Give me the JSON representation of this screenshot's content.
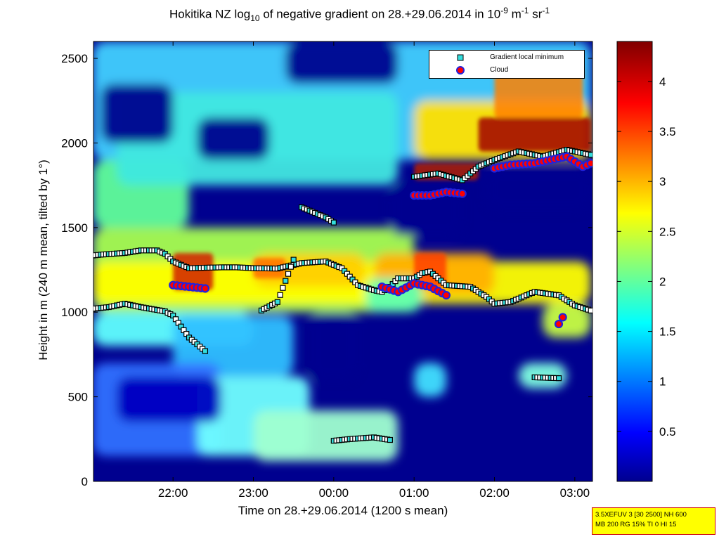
{
  "chart_data": {
    "type": "heatmap",
    "title_parts": {
      "pre": "Hokitika NZ log",
      "sub": "10",
      "mid": " of negative gradient on 28.+29.06.2014 in 10",
      "sup1": "-9",
      "mid2": " m",
      "sup2": "-1",
      "mid3": " sr",
      "sup3": "-1"
    },
    "xlabel": "Time on 28.+29.06.2014 (1200 s mean)",
    "ylabel": "Height in m (240 m mean, tilted by 1°)",
    "x_unit": "hours since 28.06.2014 00:00",
    "xlim": [
      21.01,
      27.22
    ],
    "ylim": [
      0,
      2600
    ],
    "x_ticks": [
      {
        "value": 22.0,
        "label": "22:00"
      },
      {
        "value": 23.0,
        "label": "23:00"
      },
      {
        "value": 24.0,
        "label": "00:00"
      },
      {
        "value": 25.0,
        "label": "01:00"
      },
      {
        "value": 26.0,
        "label": "02:00"
      },
      {
        "value": 27.0,
        "label": "03:00"
      }
    ],
    "y_ticks": [
      0,
      500,
      1000,
      1500,
      2000,
      2500
    ],
    "colorbar": {
      "range": [
        0,
        4.4
      ],
      "ticks": [
        0.5,
        1,
        1.5,
        2,
        2.5,
        3,
        3.5,
        4
      ],
      "colormap": "jet"
    },
    "legend": {
      "placement": "top-right",
      "entries": [
        {
          "label": "Gradient local minimum",
          "marker": "square",
          "color": "#33dddd"
        },
        {
          "label": "Cloud",
          "marker": "circle",
          "color": "#ff0000"
        }
      ]
    },
    "series": [
      {
        "name": "Gradient local minimum",
        "tracks": [
          [
            [
              21.0,
              1335
            ],
            [
              21.1,
              1340
            ],
            [
              21.4,
              1350
            ],
            [
              21.6,
              1365
            ],
            [
              21.8,
              1365
            ],
            [
              21.9,
              1345
            ],
            [
              22.0,
              1300
            ],
            [
              22.2,
              1260
            ],
            [
              22.6,
              1265
            ],
            [
              22.8,
              1265
            ],
            [
              23.0,
              1260
            ],
            [
              23.3,
              1258
            ],
            [
              23.6,
              1290
            ],
            [
              23.9,
              1300
            ],
            [
              24.1,
              1260
            ],
            [
              24.3,
              1160
            ],
            [
              24.5,
              1130
            ],
            [
              24.6,
              1120
            ],
            [
              24.7,
              1150
            ],
            [
              24.8,
              1200
            ],
            [
              25.0,
              1200
            ],
            [
              25.1,
              1230
            ],
            [
              25.2,
              1240
            ],
            [
              25.4,
              1160
            ],
            [
              25.7,
              1150
            ],
            [
              25.9,
              1090
            ],
            [
              26.0,
              1050
            ],
            [
              26.2,
              1060
            ],
            [
              26.5,
              1120
            ],
            [
              26.8,
              1100
            ],
            [
              27.0,
              1040
            ],
            [
              27.2,
              1010
            ]
          ],
          [
            [
              21.0,
              1020
            ],
            [
              21.2,
              1030
            ],
            [
              21.4,
              1050
            ],
            [
              21.6,
              1030
            ],
            [
              21.9,
              1005
            ],
            [
              22.0,
              980
            ],
            [
              22.2,
              850
            ],
            [
              22.4,
              770
            ]
          ],
          [
            [
              23.1,
              1010
            ],
            [
              23.3,
              1060
            ],
            [
              23.5,
              1310
            ]
          ],
          [
            [
              24.0,
              240
            ],
            [
              24.2,
              250
            ],
            [
              24.5,
              260
            ],
            [
              24.7,
              245
            ]
          ],
          [
            [
              25.0,
              1800
            ],
            [
              25.3,
              1820
            ],
            [
              25.6,
              1780
            ],
            [
              25.8,
              1860
            ],
            [
              26.0,
              1900
            ],
            [
              26.3,
              1950
            ],
            [
              26.6,
              1920
            ],
            [
              26.9,
              1960
            ],
            [
              27.2,
              1930
            ]
          ],
          [
            [
              23.6,
              1620
            ],
            [
              23.9,
              1560
            ],
            [
              24.0,
              1530
            ]
          ],
          [
            [
              26.5,
              615
            ],
            [
              26.8,
              610
            ]
          ]
        ]
      },
      {
        "name": "Cloud",
        "tracks": [
          [
            [
              22.0,
              1160
            ],
            [
              22.2,
              1150
            ],
            [
              22.4,
              1140
            ]
          ],
          [
            [
              24.6,
              1150
            ],
            [
              24.8,
              1120
            ],
            [
              25.0,
              1170
            ],
            [
              25.2,
              1150
            ],
            [
              25.4,
              1100
            ]
          ],
          [
            [
              25.0,
              1690
            ],
            [
              25.2,
              1690
            ],
            [
              25.4,
              1710
            ],
            [
              25.6,
              1700
            ]
          ],
          [
            [
              26.0,
              1850
            ],
            [
              26.2,
              1870
            ],
            [
              26.5,
              1880
            ],
            [
              26.7,
              1900
            ],
            [
              26.9,
              1920
            ],
            [
              27.1,
              1860
            ],
            [
              27.2,
              1880
            ]
          ],
          [
            [
              26.8,
              930
            ],
            [
              26.85,
              970
            ]
          ]
        ]
      }
    ]
  },
  "info_box": {
    "line1": "3.5XEFUV 3 [30 2500] NH 600",
    "line2": "MB 200 RG 15% TI 0 HI 15"
  },
  "colors": {
    "background_low": "#00008f",
    "marker_min_fill": "#33dddd",
    "marker_cloud_fill": "#ff0000",
    "marker_cloud_edge": "#2222dd"
  }
}
